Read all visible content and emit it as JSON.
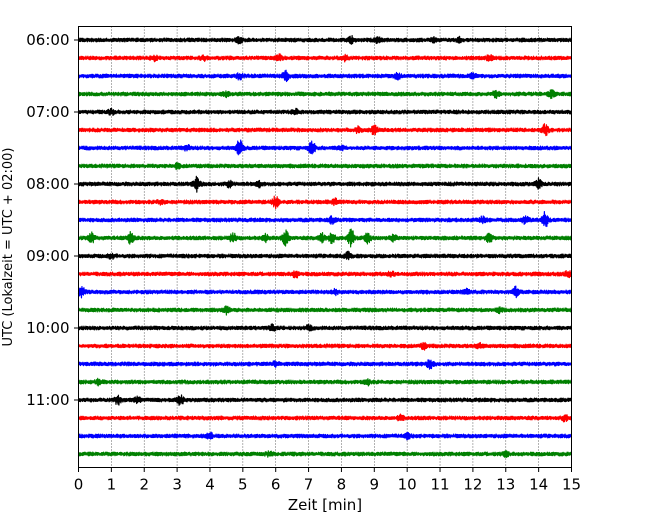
{
  "chart_data": {
    "type": "line",
    "title": "",
    "xlabel": "Zeit  [min]",
    "ylabel": "UTC (Lokalzeit = UTC + 02:00)",
    "xlim": [
      0,
      15
    ],
    "xticks": [
      0,
      1,
      2,
      3,
      4,
      5,
      6,
      7,
      8,
      9,
      10,
      11,
      12,
      13,
      14,
      15
    ],
    "grid": {
      "x": true,
      "y": false,
      "style": "dotted"
    },
    "ytick_labels": [
      "06:00",
      "07:00",
      "08:00",
      "09:00",
      "10:00",
      "11:00"
    ],
    "trace_colors": [
      "#000000",
      "#ff0000",
      "#0000ff",
      "#008000"
    ],
    "traces": [
      {
        "start": "06:00",
        "color": "#000000",
        "events": [
          {
            "t": 4.9,
            "a": 1.2
          },
          {
            "t": 8.3,
            "a": 1.3
          },
          {
            "t": 9.1,
            "a": 1.0
          },
          {
            "t": 10.8,
            "a": 1.2
          },
          {
            "t": 11.6,
            "a": 1.0
          }
        ]
      },
      {
        "start": "06:15",
        "color": "#ff0000",
        "events": [
          {
            "t": 2.3,
            "a": 1.2
          },
          {
            "t": 3.8,
            "a": 1.0
          },
          {
            "t": 6.1,
            "a": 1.2
          },
          {
            "t": 8.1,
            "a": 1.2
          },
          {
            "t": 12.5,
            "a": 1.3
          }
        ]
      },
      {
        "start": "06:30",
        "color": "#0000ff",
        "events": [
          {
            "t": 4.9,
            "a": 1.2
          },
          {
            "t": 6.3,
            "a": 2.0
          },
          {
            "t": 9.7,
            "a": 1.2
          },
          {
            "t": 12.0,
            "a": 1.0
          }
        ]
      },
      {
        "start": "06:45",
        "color": "#008000",
        "events": [
          {
            "t": 4.5,
            "a": 1.0
          },
          {
            "t": 12.7,
            "a": 1.4
          },
          {
            "t": 14.4,
            "a": 1.8
          }
        ]
      },
      {
        "start": "07:00",
        "color": "#000000",
        "events": [
          {
            "t": 1.0,
            "a": 1.0
          },
          {
            "t": 6.6,
            "a": 1.0
          }
        ]
      },
      {
        "start": "07:15",
        "color": "#ff0000",
        "events": [
          {
            "t": 8.5,
            "a": 1.2
          },
          {
            "t": 9.0,
            "a": 2.0
          },
          {
            "t": 14.2,
            "a": 2.4
          }
        ]
      },
      {
        "start": "07:30",
        "color": "#0000ff",
        "events": [
          {
            "t": 3.3,
            "a": 1.0
          },
          {
            "t": 4.9,
            "a": 3.5
          },
          {
            "t": 7.1,
            "a": 3.0
          },
          {
            "t": 8.0,
            "a": 1.0
          }
        ]
      },
      {
        "start": "07:45",
        "color": "#008000",
        "events": [
          {
            "t": 3.0,
            "a": 1.0
          }
        ]
      },
      {
        "start": "08:00",
        "color": "#000000",
        "events": [
          {
            "t": 3.6,
            "a": 3.0
          },
          {
            "t": 4.6,
            "a": 1.5
          },
          {
            "t": 14.0,
            "a": 2.0
          },
          {
            "t": 5.5,
            "a": 1.0
          }
        ]
      },
      {
        "start": "08:15",
        "color": "#ff0000",
        "events": [
          {
            "t": 2.5,
            "a": 1.0
          },
          {
            "t": 6.0,
            "a": 2.4
          },
          {
            "t": 7.8,
            "a": 1.2
          }
        ]
      },
      {
        "start": "08:30",
        "color": "#0000ff",
        "events": [
          {
            "t": 7.7,
            "a": 1.5
          },
          {
            "t": 12.3,
            "a": 1.3
          },
          {
            "t": 13.6,
            "a": 1.5
          },
          {
            "t": 14.2,
            "a": 3.5
          }
        ]
      },
      {
        "start": "08:45",
        "color": "#008000",
        "events": [
          {
            "t": 0.4,
            "a": 2.2
          },
          {
            "t": 1.6,
            "a": 3.3
          },
          {
            "t": 4.7,
            "a": 2.0
          },
          {
            "t": 5.7,
            "a": 1.5
          },
          {
            "t": 6.3,
            "a": 3.5
          },
          {
            "t": 7.4,
            "a": 2.0
          },
          {
            "t": 7.7,
            "a": 2.5
          },
          {
            "t": 8.3,
            "a": 4.0
          },
          {
            "t": 8.8,
            "a": 2.0
          },
          {
            "t": 9.6,
            "a": 1.5
          },
          {
            "t": 12.5,
            "a": 2.0
          }
        ]
      },
      {
        "start": "09:00",
        "color": "#000000",
        "events": [
          {
            "t": 8.2,
            "a": 1.5
          },
          {
            "t": 1.0,
            "a": 1.0
          }
        ]
      },
      {
        "start": "09:15",
        "color": "#ff0000",
        "events": [
          {
            "t": 6.6,
            "a": 1.5
          },
          {
            "t": 14.9,
            "a": 1.5
          },
          {
            "t": 9.5,
            "a": 1.0
          }
        ]
      },
      {
        "start": "09:30",
        "color": "#0000ff",
        "events": [
          {
            "t": 0.1,
            "a": 2.0
          },
          {
            "t": 7.8,
            "a": 1.0
          },
          {
            "t": 11.8,
            "a": 1.0
          },
          {
            "t": 13.3,
            "a": 2.0
          }
        ]
      },
      {
        "start": "09:45",
        "color": "#008000",
        "events": [
          {
            "t": 4.5,
            "a": 1.5
          },
          {
            "t": 12.8,
            "a": 1.0
          }
        ]
      },
      {
        "start": "10:00",
        "color": "#000000",
        "events": [
          {
            "t": 5.9,
            "a": 1.2
          },
          {
            "t": 7.0,
            "a": 1.0
          }
        ]
      },
      {
        "start": "10:15",
        "color": "#ff0000",
        "events": [
          {
            "t": 10.5,
            "a": 1.2
          },
          {
            "t": 12.2,
            "a": 1.0
          }
        ]
      },
      {
        "start": "10:30",
        "color": "#0000ff",
        "events": [
          {
            "t": 10.7,
            "a": 1.8
          },
          {
            "t": 6.0,
            "a": 1.0
          }
        ]
      },
      {
        "start": "10:45",
        "color": "#008000",
        "events": [
          {
            "t": 8.8,
            "a": 1.2
          },
          {
            "t": 0.6,
            "a": 1.0
          }
        ]
      },
      {
        "start": "11:00",
        "color": "#000000",
        "events": [
          {
            "t": 1.2,
            "a": 2.0
          },
          {
            "t": 3.1,
            "a": 2.0
          },
          {
            "t": 1.8,
            "a": 1.2
          }
        ]
      },
      {
        "start": "11:15",
        "color": "#ff0000",
        "events": [
          {
            "t": 14.8,
            "a": 1.2
          },
          {
            "t": 9.8,
            "a": 1.0
          }
        ]
      },
      {
        "start": "11:30",
        "color": "#0000ff",
        "events": [
          {
            "t": 4.0,
            "a": 1.2
          },
          {
            "t": 10.0,
            "a": 1.0
          }
        ]
      },
      {
        "start": "11:45",
        "color": "#008000",
        "events": [
          {
            "t": 5.8,
            "a": 1.0
          },
          {
            "t": 13.0,
            "a": 1.0
          }
        ]
      }
    ]
  }
}
